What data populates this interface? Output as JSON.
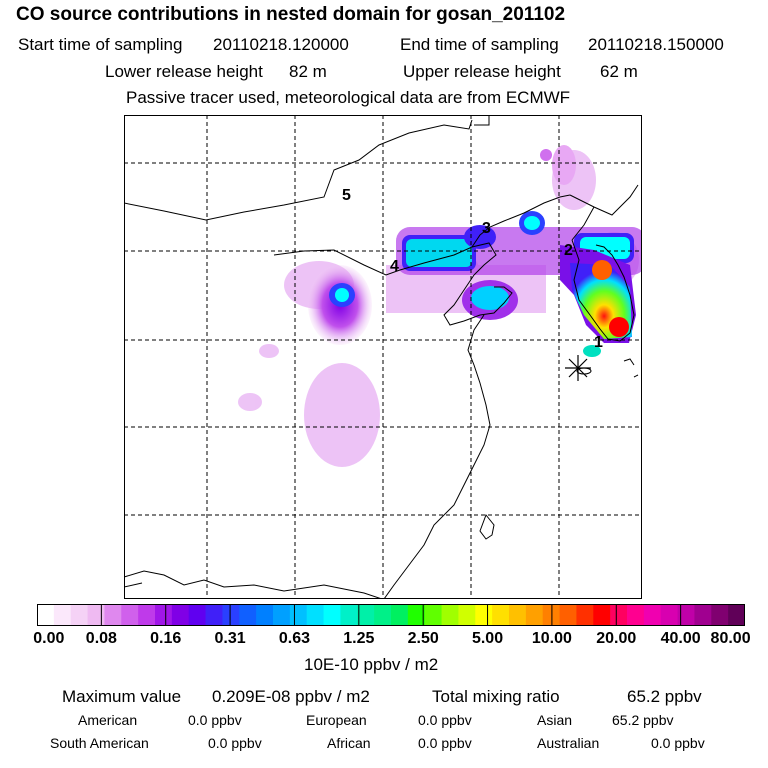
{
  "header": {
    "title": "CO  source contributions in nested domain for gosan_201102",
    "start_label": "Start time of sampling",
    "start_value": "20110218.120000",
    "end_label": "End time of sampling",
    "end_value": "20110218.150000",
    "lower_label": "Lower release height",
    "lower_value": "82 m",
    "upper_label": "Upper release height",
    "upper_value": "62 m",
    "note": "Passive tracer used, meteorological data are from ECMWF"
  },
  "map": {
    "markers": [
      "1",
      "2",
      "3",
      "4",
      "5"
    ],
    "receptor_icon": "asterisk-icon"
  },
  "colorbar": {
    "labels": [
      "0.00",
      "0.08",
      "0.16",
      "0.31",
      "0.63",
      "1.25",
      "2.50",
      "5.00",
      "10.00",
      "20.00",
      "40.00",
      "80.00"
    ],
    "units": "10E-10 ppbv / m2",
    "colors": [
      "#ffffff",
      "#fbe8fb",
      "#f5d2f6",
      "#efbaf2",
      "#df88ee",
      "#d060ec",
      "#bf3aea",
      "#a016e8",
      "#8000e6",
      "#6000f0",
      "#4020f8",
      "#2a40ff",
      "#1060ff",
      "#0080ff",
      "#00a0ff",
      "#00c0ff",
      "#00e0ff",
      "#00ffff",
      "#00f0c8",
      "#00f0a8",
      "#00f088",
      "#00f060",
      "#20ff00",
      "#60ff00",
      "#a0ff00",
      "#d0ff00",
      "#ffff00",
      "#ffe000",
      "#ffc000",
      "#ffa000",
      "#ff8000",
      "#ff6000",
      "#ff3000",
      "#ff0000",
      "#ff0060",
      "#ff0090",
      "#f000b0",
      "#d800b0",
      "#c000a8",
      "#a00090",
      "#800070",
      "#600058"
    ]
  },
  "summary": {
    "max_label": "Maximum value",
    "max_value": "0.209E-08 ppbv / m2",
    "total_label": "Total mixing ratio",
    "total_value": "65.2 ppbv"
  },
  "regions": {
    "american_label": "American",
    "american_value": "0.0 ppbv",
    "european_label": "European",
    "european_value": "0.0 ppbv",
    "asian_label": "Asian",
    "asian_value": "65.2 ppbv",
    "south_american_label": "South American",
    "south_american_value": "0.0 ppbv",
    "african_label": "African",
    "african_value": "0.0 ppbv",
    "australian_label": "Australian",
    "australian_value": "0.0 ppbv"
  }
}
